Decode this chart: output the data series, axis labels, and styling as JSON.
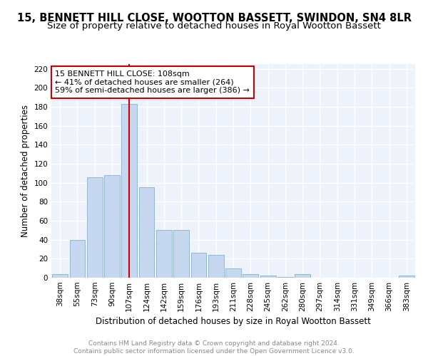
{
  "title": "15, BENNETT HILL CLOSE, WOOTTON BASSETT, SWINDON, SN4 8LR",
  "subtitle": "Size of property relative to detached houses in Royal Wootton Bassett",
  "xlabel": "Distribution of detached houses by size in Royal Wootton Bassett",
  "ylabel": "Number of detached properties",
  "footer_line1": "Contains HM Land Registry data © Crown copyright and database right 2024.",
  "footer_line2": "Contains public sector information licensed under the Open Government Licence v3.0.",
  "categories": [
    "38sqm",
    "55sqm",
    "73sqm",
    "90sqm",
    "107sqm",
    "124sqm",
    "142sqm",
    "159sqm",
    "176sqm",
    "193sqm",
    "211sqm",
    "228sqm",
    "245sqm",
    "262sqm",
    "280sqm",
    "297sqm",
    "314sqm",
    "331sqm",
    "349sqm",
    "366sqm",
    "383sqm"
  ],
  "values": [
    4,
    40,
    106,
    108,
    183,
    95,
    50,
    50,
    26,
    24,
    10,
    4,
    2,
    1,
    4,
    0,
    0,
    0,
    0,
    0,
    2
  ],
  "bar_color": "#c5d8f0",
  "bar_edge_color": "#7ab4d8",
  "vline_index": 4,
  "vline_color": "#cc0000",
  "annotation_line1": "15 BENNETT HILL CLOSE: 108sqm",
  "annotation_line2": "← 41% of detached houses are smaller (264)",
  "annotation_line3": "59% of semi-detached houses are larger (386) →",
  "ylim": [
    0,
    225
  ],
  "yticks": [
    0,
    20,
    40,
    60,
    80,
    100,
    120,
    140,
    160,
    180,
    200,
    220
  ],
  "background_color": "#eef2fa",
  "grid_color": "#ffffff",
  "title_fontsize": 10.5,
  "subtitle_fontsize": 9.5,
  "xlabel_fontsize": 8.5,
  "ylabel_fontsize": 8.5,
  "tick_fontsize": 7.5,
  "annotation_fontsize": 8,
  "footer_fontsize": 6.5,
  "footer_color": "#888888"
}
